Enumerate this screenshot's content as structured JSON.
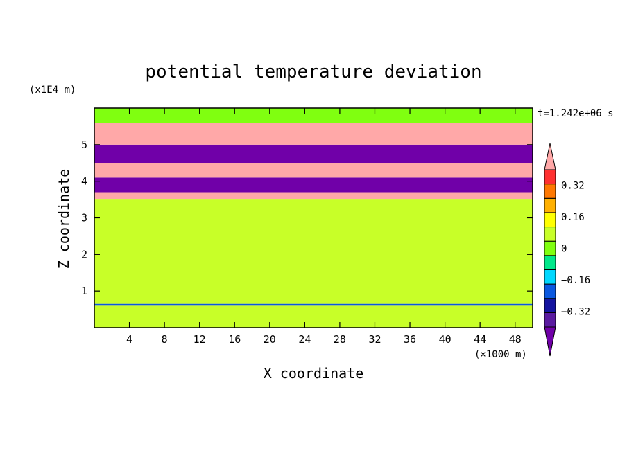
{
  "chart_data": {
    "type": "heatmap",
    "title": "potential temperature deviation",
    "xlabel": "X coordinate",
    "ylabel": "Z coordinate",
    "x_unit": "(×1000 m)",
    "y_unit": "(x1E4 m)",
    "time_label": "t=1.242e+06 s",
    "x_range": [
      0,
      50
    ],
    "y_range": [
      0,
      6
    ],
    "x_ticks": [
      "4",
      "8",
      "12",
      "16",
      "20",
      "24",
      "28",
      "32",
      "36",
      "40",
      "44",
      "48"
    ],
    "x_tick_values": [
      4,
      8,
      12,
      16,
      20,
      24,
      28,
      32,
      36,
      40,
      44,
      48
    ],
    "y_ticks": [
      "1",
      "2",
      "3",
      "4",
      "5"
    ],
    "y_tick_values": [
      1,
      2,
      3,
      4,
      5
    ],
    "colorbar": {
      "levels": [
        -0.48,
        -0.4,
        -0.32,
        -0.24,
        -0.16,
        -0.08,
        0,
        0.08,
        0.16,
        0.24,
        0.32,
        0.4,
        0.48
      ],
      "labels": [
        "0.32",
        "0.16",
        "0",
        "−0.16",
        "−0.32"
      ],
      "label_values": [
        0.32,
        0.16,
        0,
        -0.16,
        -0.32
      ],
      "colors": [
        "#7000a8",
        "#5a1aa0",
        "#1414a0",
        "#0a58e0",
        "#00d8ff",
        "#00e88a",
        "#80ff10",
        "#c8ff28",
        "#ffff00",
        "#ffb000",
        "#ff7800",
        "#ff3030",
        "#ffa8a8"
      ]
    },
    "bands": [
      {
        "z": [
          0.0,
          0.6
        ],
        "value": 0.05
      },
      {
        "z": [
          0.6,
          0.65
        ],
        "value": -0.3
      },
      {
        "z": [
          0.65,
          3.5
        ],
        "value": 0.02
      },
      {
        "z": [
          3.5,
          3.7
        ],
        "value": 0.48
      },
      {
        "z": [
          3.7,
          4.1
        ],
        "value": -0.48
      },
      {
        "z": [
          4.1,
          4.5
        ],
        "value": 0.48
      },
      {
        "z": [
          4.5,
          5.0
        ],
        "value": -0.48
      },
      {
        "z": [
          5.0,
          5.6
        ],
        "value": 0.48
      },
      {
        "z": [
          5.6,
          6.0
        ],
        "value": 0.0
      }
    ]
  }
}
